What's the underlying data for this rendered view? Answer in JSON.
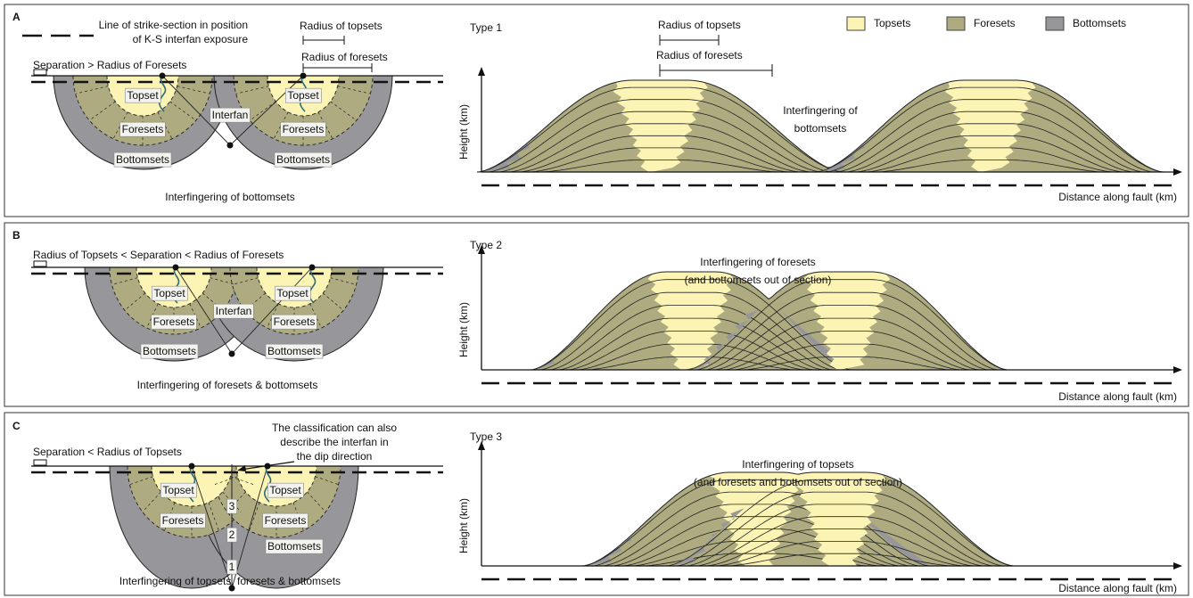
{
  "legend": [
    "Topsets",
    "Foresets",
    "Bottomsets"
  ],
  "panels": [
    {
      "label": "A",
      "plan": {
        "strike_note": [
          "Line of strike-section in position",
          "of K-S interfan exposure"
        ],
        "radius_topsets": "Radius of topsets",
        "radius_foresets": "Radius of foresets",
        "condition": "Separation > Radius of Foresets",
        "labels": [
          "Topset",
          "Topset",
          "Interfan",
          "Foresets",
          "Foresets",
          "Bottomsets",
          "Bottomsets"
        ],
        "caption": "Interfingering of bottomsets"
      },
      "section": {
        "type": "Type 1",
        "radius_topsets": "Radius of topsets",
        "radius_foresets": "Radius of foresets",
        "note": [
          "Interfingering of",
          "bottomsets"
        ],
        "y_label": "Height (km)",
        "x_label": "Distance along fault (km)"
      }
    },
    {
      "label": "B",
      "plan": {
        "condition": "Radius of Topsets < Separation < Radius of Foresets",
        "labels": [
          "Topset",
          "Topset",
          "Interfan",
          "Foresets",
          "Foresets",
          "Bottomsets",
          "Bottomsets"
        ],
        "caption": "Interfingering of foresets & bottomsets"
      },
      "section": {
        "type": "Type 2",
        "note": [
          "Interfingering of foresets",
          "(and bottomsets out of section)"
        ],
        "y_label": "Height (km)",
        "x_label": "Distance along fault (km)"
      }
    },
    {
      "label": "C",
      "plan": {
        "condition": "Separation < Radius of Topsets",
        "dip_note": [
          "The classification can also",
          "describe the interfan in",
          "the dip direction"
        ],
        "labels": [
          "Topset",
          "Topset",
          "Foresets",
          "Foresets",
          "Bottomsets",
          "3",
          "2",
          "1"
        ],
        "caption": "Interfingering of topsets, foresets & bottomsets"
      },
      "section": {
        "type": "Type 3",
        "note": [
          "Interfingering of topsets",
          "(and foresets and bottomsets out of section)"
        ],
        "y_label": "Height (km)",
        "x_label": "Distance along fault (km)"
      }
    }
  ]
}
